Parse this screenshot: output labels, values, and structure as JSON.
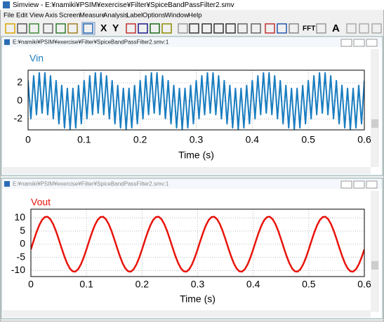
{
  "window": {
    "title": "Simview - E:¥namiki¥PSIM¥exercise¥Filter¥SpiceBandPassFilter2.smv"
  },
  "menu": [
    "File",
    "Edit",
    "View",
    "Axis",
    "Screen",
    "Measure",
    "Analysis",
    "Label",
    "Options",
    "Window",
    "Help"
  ],
  "toolbar": {
    "x": "X",
    "y": "Y",
    "fft": "FFT",
    "a": "A"
  },
  "subwindows": [
    {
      "title": "E:¥namiki¥PSIM¥exercise¥Filter¥SpiceBandPassFilter2.smv:1"
    },
    {
      "title": "E:¥namiki¥PSIM¥exercise¥Filter¥SpiceBandPassFilter2.smv:1"
    }
  ],
  "chart_data": [
    {
      "type": "line",
      "xlabel": "Time (s)",
      "grid": true,
      "xlim": [
        0,
        0.6
      ],
      "xticks": [
        0,
        0.1,
        0.2,
        0.3,
        0.4,
        0.5,
        0.6
      ],
      "ylim": [
        -3.2,
        3.4
      ],
      "yticks": [
        -2,
        0,
        2
      ],
      "x": [
        0,
        0.005,
        0.01,
        0.015,
        0.02,
        0.025,
        0.03,
        0.035,
        0.04,
        0.045,
        0.05,
        0.055,
        0.06,
        0.065,
        0.07,
        0.075,
        0.08,
        0.085,
        0.09,
        0.095,
        0.1,
        0.105,
        0.11,
        0.115,
        0.12,
        0.125,
        0.13,
        0.135,
        0.14,
        0.145,
        0.15,
        0.155,
        0.16,
        0.165,
        0.17,
        0.175,
        0.18,
        0.185,
        0.19,
        0.195,
        0.2,
        0.205,
        0.21,
        0.215,
        0.22,
        0.225,
        0.23,
        0.235,
        0.24,
        0.245,
        0.25,
        0.255,
        0.26,
        0.265,
        0.27,
        0.275,
        0.28,
        0.285,
        0.29,
        0.295,
        0.3,
        0.305,
        0.31,
        0.315,
        0.32,
        0.325,
        0.33,
        0.335,
        0.34,
        0.345,
        0.35,
        0.355,
        0.36,
        0.365,
        0.37,
        0.375,
        0.38,
        0.385,
        0.39,
        0.395,
        0.4,
        0.405,
        0.41,
        0.415,
        0.42,
        0.425,
        0.43,
        0.435,
        0.44,
        0.445,
        0.45,
        0.455,
        0.46,
        0.465,
        0.47,
        0.475,
        0.48,
        0.485,
        0.49,
        0.495,
        0.5,
        0.505,
        0.51,
        0.515,
        0.52,
        0.525,
        0.53,
        0.535,
        0.54,
        0.545,
        0.55,
        0.555,
        0.56,
        0.565,
        0.57,
        0.575,
        0.58,
        0.585,
        0.59,
        0.595,
        0.6
      ],
      "series": [
        {
          "name": "Vin",
          "color": "#1a7dc0",
          "values": [
            2.25,
            -1.97,
            2.78,
            -1.52,
            3.11,
            -1.35,
            3.11,
            -1.52,
            2.78,
            -1.97,
            2.25,
            -2.53,
            1.72,
            -2.98,
            1.39,
            -3.15,
            1.39,
            -2.98,
            1.72,
            -2.53,
            2.25,
            -1.97,
            2.78,
            -1.52,
            3.11,
            -1.35,
            3.11,
            -1.52,
            2.78,
            -1.97,
            2.25,
            -2.53,
            1.72,
            -2.98,
            1.39,
            -3.15,
            1.39,
            -2.98,
            1.72,
            -2.53,
            2.25,
            -1.97,
            2.78,
            -1.52,
            3.11,
            -1.35,
            3.11,
            -1.52,
            2.78,
            -1.97,
            2.25,
            -2.53,
            1.72,
            -2.98,
            1.39,
            -3.15,
            1.39,
            -2.98,
            1.72,
            -2.53,
            2.25,
            -1.97,
            2.78,
            -1.52,
            3.11,
            -1.35,
            3.11,
            -1.52,
            2.78,
            -1.97,
            2.25,
            -2.53,
            1.72,
            -2.98,
            1.39,
            -3.15,
            1.39,
            -2.98,
            1.72,
            -2.53,
            2.25,
            -1.97,
            2.78,
            -1.52,
            3.11,
            -1.35,
            3.11,
            -1.52,
            2.78,
            -1.97,
            2.25,
            -2.53,
            1.72,
            -2.98,
            1.39,
            -3.15,
            1.39,
            -2.98,
            1.72,
            -2.53,
            2.25,
            -1.97,
            2.78,
            -1.52,
            3.11,
            -1.35,
            3.11,
            -1.52,
            2.78,
            -1.97,
            2.25,
            -2.53,
            1.72,
            -2.98,
            1.39,
            -3.15,
            1.39,
            -2.98,
            1.72,
            -2.53,
            2.25
          ]
        }
      ]
    },
    {
      "type": "line",
      "xlabel": "Time (s)",
      "grid": true,
      "xlim": [
        0,
        0.6
      ],
      "xticks": [
        0,
        0.1,
        0.2,
        0.3,
        0.4,
        0.5,
        0.6
      ],
      "ylim": [
        -12.3,
        13.3
      ],
      "yticks": [
        -10,
        -5,
        0,
        5,
        10
      ],
      "x": [
        0,
        0.005,
        0.01,
        0.015,
        0.02,
        0.025,
        0.03,
        0.035,
        0.04,
        0.045,
        0.05,
        0.055,
        0.06,
        0.065,
        0.07,
        0.075,
        0.08,
        0.085,
        0.09,
        0.095,
        0.1,
        0.105,
        0.11,
        0.115,
        0.12,
        0.125,
        0.13,
        0.135,
        0.14,
        0.145,
        0.15,
        0.155,
        0.16,
        0.165,
        0.17,
        0.175,
        0.18,
        0.185,
        0.19,
        0.195,
        0.2,
        0.205,
        0.21,
        0.215,
        0.22,
        0.225,
        0.23,
        0.235,
        0.24,
        0.245,
        0.25,
        0.255,
        0.26,
        0.265,
        0.27,
        0.275,
        0.28,
        0.285,
        0.29,
        0.295,
        0.3,
        0.305,
        0.31,
        0.315,
        0.32,
        0.325,
        0.33,
        0.335,
        0.34,
        0.345,
        0.35,
        0.355,
        0.36,
        0.365,
        0.37,
        0.375,
        0.38,
        0.385,
        0.39,
        0.395,
        0.4,
        0.405,
        0.41,
        0.415,
        0.42,
        0.425,
        0.43,
        0.435,
        0.44,
        0.445,
        0.45,
        0.455,
        0.46,
        0.465,
        0.47,
        0.475,
        0.48,
        0.485,
        0.49,
        0.495,
        0.5,
        0.505,
        0.51,
        0.515,
        0.52,
        0.525,
        0.53,
        0.535,
        0.54,
        0.545,
        0.55,
        0.555,
        0.56,
        0.565,
        0.57,
        0.575,
        0.58,
        0.585,
        0.59,
        0.595,
        0.6
      ],
      "series": [
        {
          "name": "Vout",
          "color": "#e8140c",
          "values": [
            -1.97,
            1.32,
            4.47,
            7.19,
            9.2,
            10.31,
            10.42,
            9.5,
            7.65,
            5.06,
            1.97,
            -1.32,
            -4.47,
            -7.19,
            -9.2,
            -10.31,
            -10.42,
            -9.5,
            -7.65,
            -5.06,
            -1.97,
            1.32,
            4.47,
            7.19,
            9.2,
            10.31,
            10.42,
            9.5,
            7.65,
            5.06,
            1.97,
            -1.32,
            -4.47,
            -7.19,
            -9.2,
            -10.31,
            -10.42,
            -9.5,
            -7.65,
            -5.06,
            -1.97,
            1.32,
            4.47,
            7.19,
            9.2,
            10.31,
            10.42,
            9.5,
            7.65,
            5.06,
            1.97,
            -1.32,
            -4.47,
            -7.19,
            -9.2,
            -10.31,
            -10.42,
            -9.5,
            -7.65,
            -5.06,
            -1.97,
            1.32,
            4.47,
            7.19,
            9.2,
            10.31,
            10.42,
            9.5,
            7.65,
            5.06,
            1.97,
            -1.32,
            -4.47,
            -7.19,
            -9.2,
            -10.31,
            -10.42,
            -9.5,
            -7.65,
            -5.06,
            -1.97,
            1.32,
            4.47,
            7.19,
            9.2,
            10.31,
            10.42,
            9.5,
            7.65,
            5.06,
            1.97,
            -1.32,
            -4.47,
            -7.19,
            -9.2,
            -10.31,
            -10.42,
            -9.5,
            -7.65,
            -5.06,
            -1.97,
            1.32,
            4.47,
            7.19,
            9.2,
            10.31,
            10.42,
            9.5,
            7.65,
            5.06,
            1.97,
            -1.32,
            -4.47,
            -7.19,
            -9.2,
            -10.31,
            -10.42,
            -9.5,
            -7.65,
            -5.06,
            -1.97
          ]
        }
      ]
    }
  ]
}
